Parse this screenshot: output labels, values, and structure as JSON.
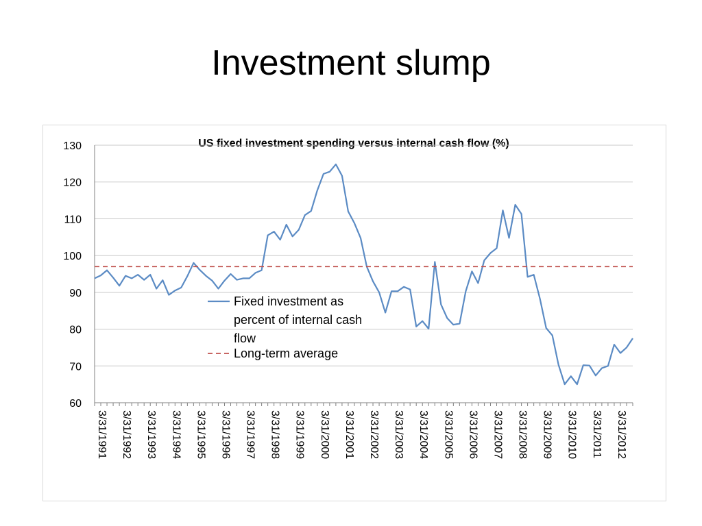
{
  "slide": {
    "title": "Investment slump"
  },
  "chart_data": {
    "type": "line",
    "title": "US fixed investment spending versus internal cash flow (%)",
    "xlabel": "",
    "ylabel": "",
    "ylim": [
      60,
      130
    ],
    "yticks": [
      60,
      70,
      80,
      90,
      100,
      110,
      120,
      130
    ],
    "grid": true,
    "legend_position": "center-left",
    "x_tick_labels": [
      "3/31/1991",
      "3/31/1992",
      "3/31/1993",
      "3/31/1994",
      "3/31/1995",
      "3/31/1996",
      "3/31/1997",
      "3/31/1998",
      "3/31/1999",
      "3/31/2000",
      "3/31/2001",
      "3/31/2002",
      "3/31/2003",
      "3/31/2004",
      "3/31/2005",
      "3/31/2006",
      "3/31/2007",
      "3/31/2008",
      "3/31/2009",
      "3/31/2010",
      "3/31/2011",
      "3/31/2012"
    ],
    "series": [
      {
        "name": "Fixed investment as percent of internal cash flow",
        "legend_lines": [
          "Fixed investment as",
          "percent of internal cash",
          "flow"
        ],
        "style": "solid",
        "color": "#5b8bc4",
        "values": [
          93.8,
          94.6,
          96.0,
          94.0,
          91.8,
          94.5,
          93.8,
          94.8,
          93.4,
          94.8,
          91.0,
          93.3,
          89.3,
          90.5,
          91.3,
          94.4,
          98.0,
          96.1,
          94.5,
          93.2,
          91.0,
          93.2,
          95.0,
          93.4,
          93.8,
          93.8,
          95.3,
          96.0,
          105.5,
          106.5,
          104.3,
          108.4,
          105.2,
          107.0,
          111.0,
          112.1,
          117.7,
          122.2,
          122.8,
          124.8,
          121.7,
          112.0,
          108.8,
          104.8,
          97.0,
          93.0,
          90.0,
          84.5,
          90.3,
          90.3,
          91.5,
          90.8,
          80.7,
          82.2,
          80.1,
          98.3,
          86.7,
          83.0,
          81.2,
          81.5,
          90.3,
          95.7,
          92.5,
          98.7,
          100.7,
          102.0,
          112.3,
          104.8,
          113.8,
          111.3,
          94.2,
          94.8,
          88.2,
          80.3,
          78.3,
          70.3,
          65.0,
          67.2,
          65.0,
          70.2,
          70.1,
          67.4,
          69.4,
          70.0,
          75.8,
          73.5,
          75.0,
          77.5
        ]
      },
      {
        "name": "Long-term average",
        "style": "dashed",
        "color": "#c0504d",
        "values": [
          97
        ]
      }
    ]
  }
}
